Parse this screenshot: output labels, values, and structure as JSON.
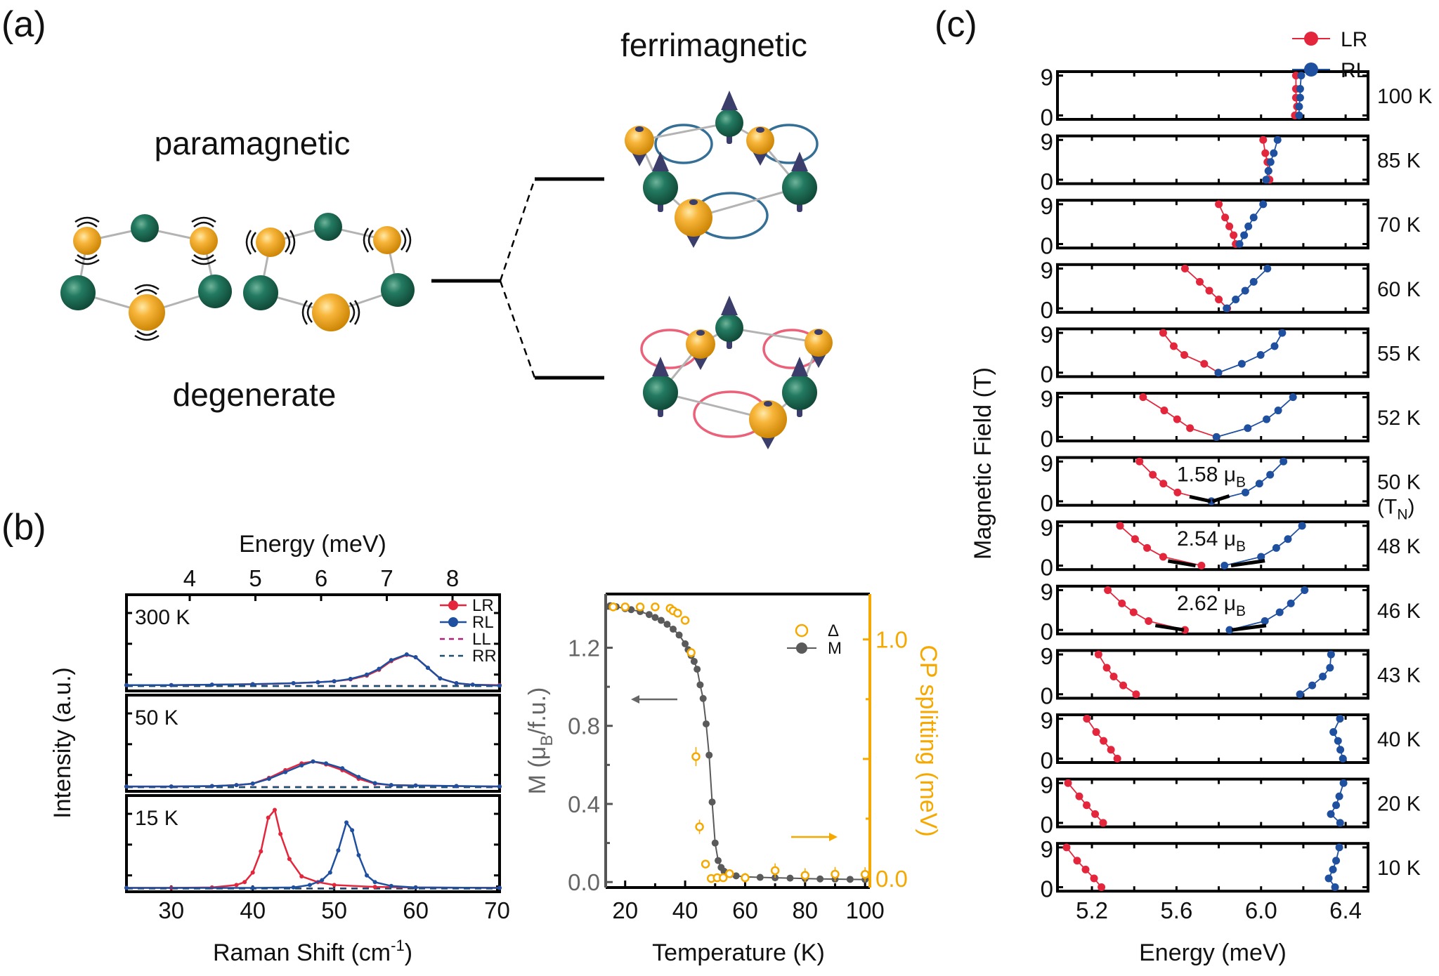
{
  "panel_labels": {
    "a": "(a)",
    "b": "(b)",
    "c": "(c)"
  },
  "panel_a": {
    "paramagnetic": "paramagnetic",
    "degenerate": "degenerate",
    "ferrimagnetic": "ferrimagnetic"
  },
  "colors": {
    "LR": "#e3263c",
    "RL": "#1f4f9f",
    "LL": "#b0207a",
    "RR": "#1d4f6e",
    "M": "#5a5a5a",
    "delta": "#f5a800",
    "fit": "#000000",
    "orbit_upper": "#1f5f8b",
    "orbit_lower": "#e8506a",
    "sphere_yellow": "#f2a51c",
    "sphere_green": "#1e6e56",
    "spin_arrow": "#3b3d6b"
  },
  "chart_data": [
    {
      "type": "line",
      "ylabel": "Intensity (a.u.)",
      "xlabel": {
        "main": "Raman Shift (cm",
        "sup": "-1",
        "close": ")"
      },
      "xlim": [
        24.5,
        70.3
      ],
      "xticks": [
        "30",
        "40",
        "50",
        "60",
        "70"
      ],
      "ylim": [
        0,
        1
      ],
      "top_axis": {
        "label": "Energy (meV)",
        "ticks": [
          "4",
          "5",
          "6",
          "7",
          "8"
        ]
      },
      "legend": [
        "LR",
        "RL",
        "LL",
        "RR"
      ],
      "panels": [
        {
          "label": "300 K",
          "series": [
            {
              "name": "LL",
              "x": [
                24.5,
                70.3
              ],
              "y": [
                0.052,
                0.052
              ]
            },
            {
              "name": "RR",
              "x": [
                24.5,
                70.3
              ],
              "y": [
                0.05,
                0.05
              ]
            },
            {
              "name": "LR",
              "x": [
                24.5,
                30,
                35,
                40,
                45,
                48,
                50,
                52,
                54,
                55.5,
                57,
                58.9,
                60,
                61.5,
                63,
                65,
                67,
                70.3
              ],
              "y": [
                0.06,
                0.06,
                0.065,
                0.07,
                0.08,
                0.09,
                0.1,
                0.12,
                0.16,
                0.22,
                0.31,
                0.375,
                0.35,
                0.24,
                0.13,
                0.08,
                0.065,
                0.06
              ]
            },
            {
              "name": "RL",
              "x": [
                24.5,
                30,
                35,
                40,
                45,
                48,
                50,
                52,
                54,
                55.5,
                57,
                58.9,
                60,
                61.5,
                63,
                65,
                67,
                70.3
              ],
              "y": [
                0.06,
                0.06,
                0.065,
                0.07,
                0.08,
                0.09,
                0.1,
                0.125,
                0.17,
                0.23,
                0.32,
                0.38,
                0.35,
                0.24,
                0.13,
                0.08,
                0.065,
                0.055
              ]
            }
          ]
        },
        {
          "label": "50 K",
          "series": [
            {
              "name": "LL",
              "x": [
                24.5,
                70.3
              ],
              "y": [
                0.045,
                0.045
              ]
            },
            {
              "name": "RR",
              "x": [
                24.5,
                70.3
              ],
              "y": [
                0.043,
                0.043
              ]
            },
            {
              "name": "LR",
              "x": [
                24.5,
                30,
                35,
                38,
                40,
                42,
                44,
                46,
                47.4,
                49,
                51,
                53,
                55,
                57,
                60,
                65,
                70.3
              ],
              "y": [
                0.05,
                0.05,
                0.055,
                0.065,
                0.08,
                0.14,
                0.22,
                0.29,
                0.31,
                0.28,
                0.22,
                0.13,
                0.08,
                0.065,
                0.06,
                0.055,
                0.05
              ]
            },
            {
              "name": "RL",
              "x": [
                24.5,
                30,
                35,
                38,
                40,
                42,
                44,
                46,
                47.4,
                49,
                51,
                53,
                55,
                57,
                60,
                65,
                70.3
              ],
              "y": [
                0.05,
                0.05,
                0.055,
                0.065,
                0.08,
                0.13,
                0.2,
                0.27,
                0.31,
                0.29,
                0.24,
                0.15,
                0.085,
                0.065,
                0.06,
                0.055,
                0.05
              ]
            }
          ]
        },
        {
          "label": "15 K",
          "series": [
            {
              "name": "LL",
              "x": [
                24.5,
                70.3
              ],
              "y": [
                0.035,
                0.035
              ]
            },
            {
              "name": "RR",
              "x": [
                24.5,
                70.3
              ],
              "y": [
                0.033,
                0.033
              ]
            },
            {
              "name": "LR",
              "x": [
                24.5,
                30,
                35,
                38,
                39,
                40,
                41,
                41.9,
                42.7,
                43.4,
                44.5,
                46,
                48,
                50,
                55,
                60,
                70.3
              ],
              "y": [
                0.04,
                0.04,
                0.045,
                0.07,
                0.1,
                0.2,
                0.42,
                0.77,
                0.85,
                0.6,
                0.34,
                0.16,
                0.1,
                0.07,
                0.05,
                0.045,
                0.04
              ]
            },
            {
              "name": "RL",
              "x": [
                24.5,
                40,
                45,
                47,
                48.5,
                49.5,
                50.5,
                51.5,
                52.2,
                53,
                54,
                55,
                57,
                60,
                70.3
              ],
              "y": [
                0.04,
                0.04,
                0.045,
                0.07,
                0.12,
                0.2,
                0.43,
                0.72,
                0.64,
                0.38,
                0.17,
                0.1,
                0.06,
                0.045,
                0.04
              ]
            }
          ]
        }
      ]
    },
    {
      "type": "scatter",
      "xlabel": "Temperature (K)",
      "xlim": [
        13.5,
        101.6
      ],
      "xticks": [
        "20",
        "40",
        "60",
        "80",
        "100"
      ],
      "ylabel_left": {
        "main": "M (μ",
        "sub": "B",
        "close": "/f.u.)"
      },
      "ylim_left": [
        -0.028,
        1.475
      ],
      "yticks_left": [
        "0.0",
        "0.4",
        "0.8",
        "1.2"
      ],
      "ylabel_right": "CP splitting (meV)",
      "ylim_right": [
        -0.038,
        1.19
      ],
      "yticks_right": [
        "0.0",
        "1.0"
      ],
      "legend": [
        "Δ",
        "M"
      ],
      "series": [
        {
          "name": "M",
          "axis": "left",
          "x": [
            15,
            17,
            20,
            22,
            25,
            28,
            30,
            32,
            34,
            36,
            38,
            40,
            41,
            42,
            43,
            44,
            45,
            46,
            47,
            48,
            49,
            50,
            51,
            52,
            53,
            54,
            55,
            57,
            60,
            65,
            70,
            75,
            80,
            85,
            90,
            95,
            100
          ],
          "y": [
            1.415,
            1.41,
            1.4,
            1.395,
            1.385,
            1.37,
            1.355,
            1.34,
            1.32,
            1.295,
            1.265,
            1.22,
            1.19,
            1.16,
            1.13,
            1.09,
            1.01,
            0.94,
            0.81,
            0.65,
            0.41,
            0.2,
            0.11,
            0.075,
            0.055,
            0.045,
            0.038,
            0.032,
            0.027,
            0.024,
            0.022,
            0.02,
            0.018,
            0.016,
            0.015,
            0.014,
            0.013
          ]
        },
        {
          "name": "Δ",
          "axis": "right",
          "x": [
            16,
            20,
            25,
            30,
            35,
            36,
            37.5,
            40,
            42,
            43.6,
            44.8,
            46.8,
            48.7,
            50.7,
            52.7,
            54.8,
            60,
            70,
            80,
            90,
            100
          ],
          "y": [
            1.136,
            1.136,
            1.136,
            1.136,
            1.13,
            1.12,
            1.11,
            1.08,
            0.945,
            0.51,
            0.216,
            0.06,
            0.0,
            0.003,
            0.003,
            0.02,
            0.003,
            0.033,
            0.013,
            0.018,
            0.017
          ],
          "err": [
            0,
            0,
            0,
            0,
            0,
            0,
            0,
            0,
            0.02,
            0.04,
            0.03,
            0.015,
            0.015,
            0.01,
            0.01,
            0.015,
            0.02,
            0.03,
            0.03,
            0.03,
            0.03
          ]
        }
      ]
    },
    {
      "type": "scatter",
      "xlabel": "Energy (meV)",
      "ylabel": "Magnetic Field (T)",
      "xlim": [
        5.037,
        6.506
      ],
      "xticks": [
        "5.2",
        "5.6",
        "6.0",
        "6.4"
      ],
      "ylim": [
        -0.9,
        9.9
      ],
      "yticks": [
        "0",
        "9"
      ],
      "legend": [
        "LR",
        "RL"
      ],
      "fields": [
        0,
        2,
        4,
        6,
        9
      ],
      "panels": [
        {
          "label": "100 K",
          "LR": [
            6.16,
            6.17,
            6.165,
            6.165,
            6.165
          ],
          "RL": [
            6.18,
            6.18,
            6.185,
            6.185,
            6.19
          ]
        },
        {
          "label": "85 K",
          "LR": [
            6.04,
            6.035,
            6.03,
            6.02,
            6.01
          ],
          "RL": [
            6.024,
            6.035,
            6.045,
            6.06,
            6.078
          ]
        },
        {
          "label": "70 K",
          "LR": [
            5.88,
            5.87,
            5.85,
            5.83,
            5.8
          ],
          "RL": [
            5.898,
            5.92,
            5.94,
            5.965,
            6.01
          ]
        },
        {
          "label": "60 K",
          "LR": [
            5.84,
            5.8,
            5.755,
            5.71,
            5.64
          ],
          "RL": [
            5.837,
            5.88,
            5.925,
            5.965,
            6.03
          ]
        },
        {
          "label": "55 K",
          "LR": [
            5.798,
            5.731,
            5.637,
            5.587,
            5.537
          ],
          "RL": [
            5.798,
            5.909,
            5.998,
            6.064,
            6.1
          ]
        },
        {
          "label": "52 K",
          "LR": [
            5.789,
            5.664,
            5.603,
            5.542,
            5.442
          ],
          "RL": [
            5.789,
            5.937,
            6.026,
            6.081,
            6.151
          ]
        },
        {
          "label": "50 K",
          "LR": [
            5.765,
            5.605,
            5.538,
            5.488,
            5.425
          ],
          "RL": [
            5.765,
            5.926,
            5.992,
            6.043,
            6.106
          ],
          "sublabel": {
            "main": "(T",
            "sub": "N",
            "close": ")"
          },
          "moment": {
            "main": "1.58 μ",
            "sub": "B"
          },
          "fits": [
            [
              [
                5.662,
                1.06
              ],
              [
                5.762,
                0
              ]
            ],
            [
              [
                5.77,
                0
              ],
              [
                5.85,
                1.2
              ]
            ]
          ]
        },
        {
          "label": "48 K",
          "LR": [
            5.718,
            5.537,
            5.461,
            5.404,
            5.333
          ],
          "RL": [
            5.827,
            6.0,
            6.072,
            6.127,
            6.194
          ],
          "moment": {
            "main": "2.54 μ",
            "sub": "B"
          },
          "fits": [
            [
              [
                5.56,
                1.06
              ],
              [
                5.69,
                0
              ]
            ],
            [
              [
                5.858,
                0
              ],
              [
                6.018,
                1.1
              ]
            ]
          ]
        },
        {
          "label": "46 K",
          "LR": [
            5.64,
            5.468,
            5.397,
            5.342,
            5.275
          ],
          "RL": [
            5.851,
            6.018,
            6.088,
            6.141,
            6.206
          ],
          "moment": {
            "main": "2.62 μ",
            "sub": "B"
          },
          "fits": [
            [
              [
                5.5,
                1.0
              ],
              [
                5.635,
                0
              ]
            ],
            [
              [
                5.862,
                0
              ],
              [
                6.024,
                1.0
              ]
            ]
          ]
        },
        {
          "label": "43 K",
          "LR": [
            5.409,
            5.348,
            5.303,
            5.27,
            5.231
          ],
          "RL": [
            6.184,
            6.242,
            6.292,
            6.326,
            6.331
          ]
        },
        {
          "label": "40 K",
          "LR": [
            5.32,
            5.29,
            5.255,
            5.22,
            5.176
          ],
          "RL": [
            6.387,
            6.375,
            6.364,
            6.342,
            6.373
          ]
        },
        {
          "label": "20 K",
          "LR": [
            5.253,
            5.215,
            5.175,
            5.14,
            5.087
          ],
          "RL": [
            6.374,
            6.33,
            6.355,
            6.37,
            6.39
          ]
        },
        {
          "label": "10 K",
          "LR": [
            5.245,
            5.21,
            5.17,
            5.13,
            5.08
          ],
          "RL": [
            6.35,
            6.32,
            6.34,
            6.355,
            6.37
          ]
        }
      ]
    }
  ]
}
